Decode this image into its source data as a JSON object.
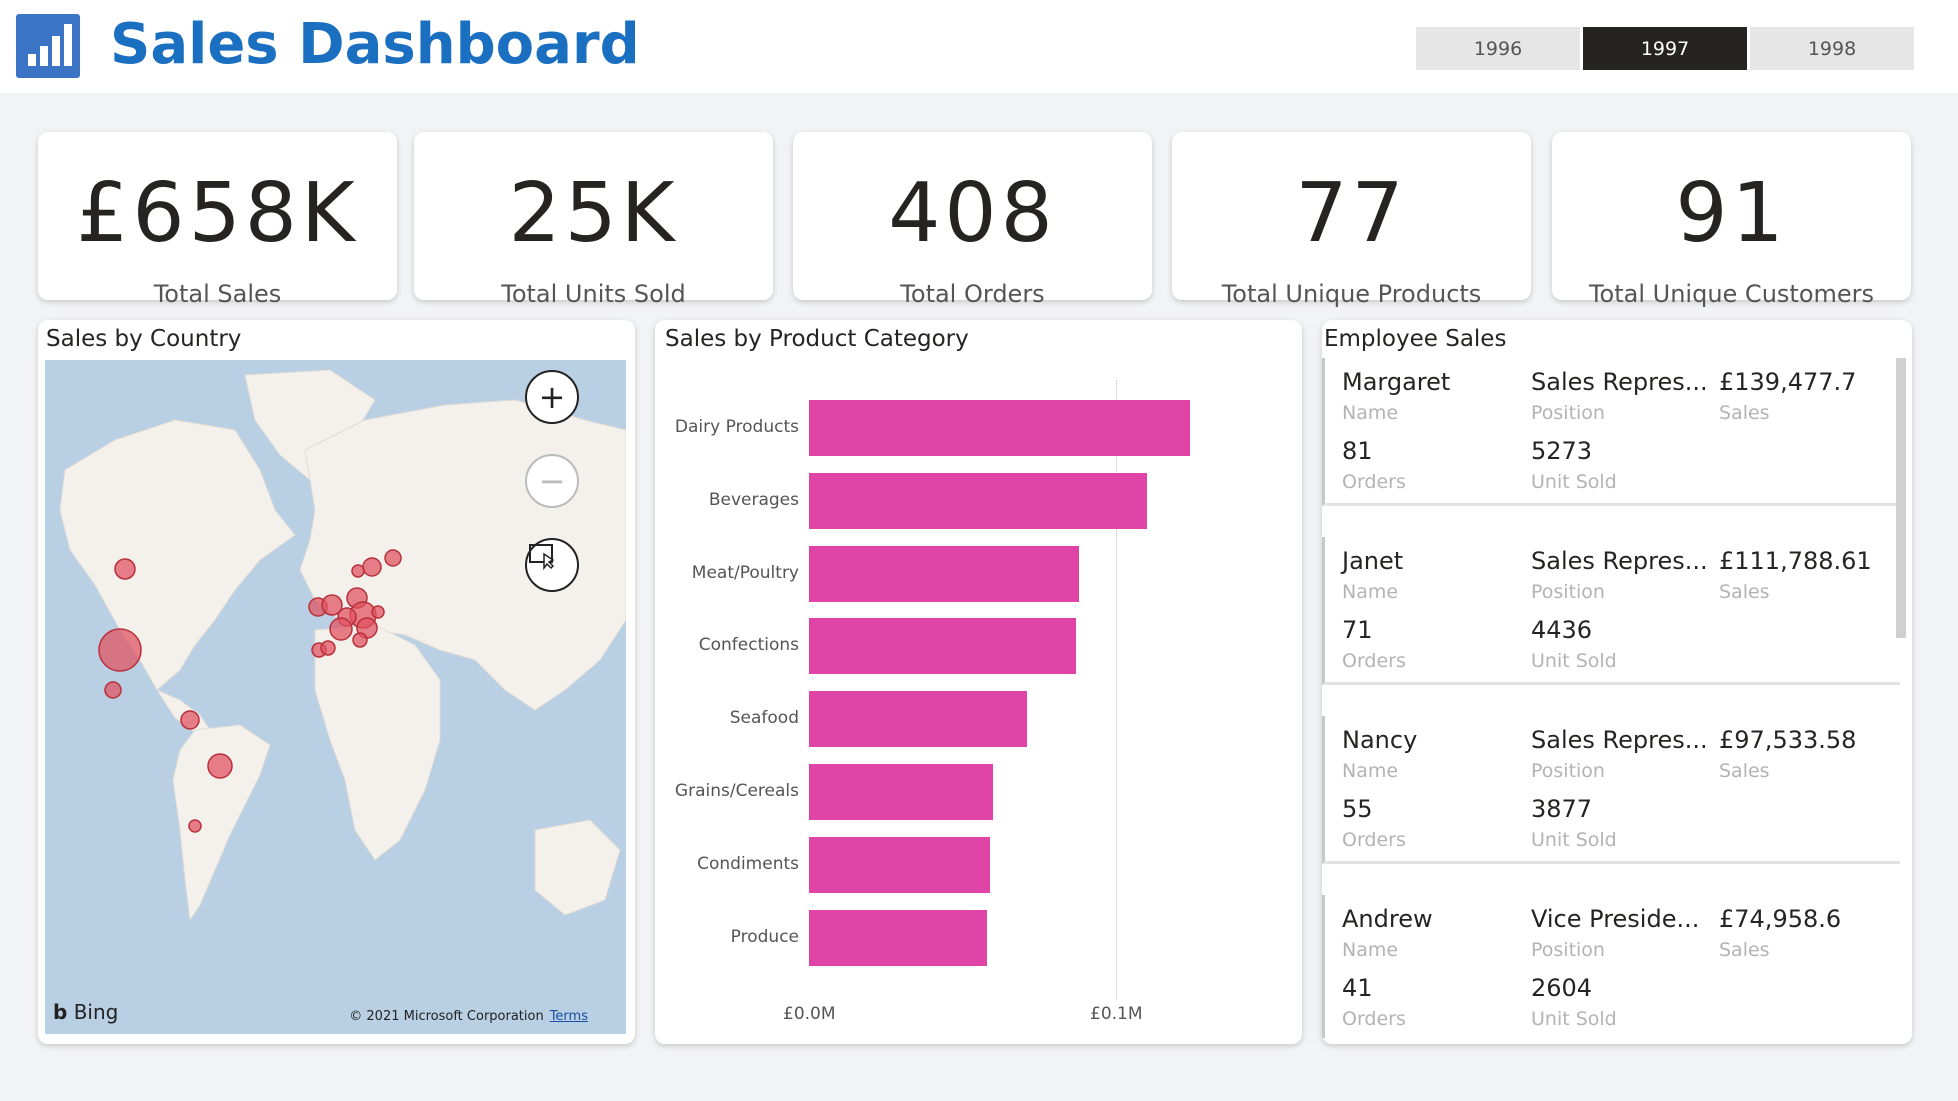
{
  "header": {
    "title": "Sales Dashboard",
    "logo_icon": "bar-chart-icon",
    "years": [
      {
        "label": "1996",
        "selected": false
      },
      {
        "label": "1997",
        "selected": true
      },
      {
        "label": "1998",
        "selected": false
      }
    ]
  },
  "kpis": [
    {
      "value": "£658K",
      "label": "Total Sales"
    },
    {
      "value": "25K",
      "label": "Total Units Sold"
    },
    {
      "value": "408",
      "label": "Total Orders"
    },
    {
      "value": "77",
      "label": "Total Unique Products"
    },
    {
      "value": "91",
      "label": "Total Unique Customers"
    }
  ],
  "map": {
    "title": "Sales by Country",
    "zoom_in_icon": "plus-icon",
    "zoom_out_icon": "minus-icon",
    "select_icon": "lasso-select-icon",
    "bing_label": "Bing",
    "copyright": "© 2021 Microsoft Corporation",
    "terms": "Terms",
    "colors": {
      "water": "#b9cfe4",
      "land": "#f4f1ec",
      "bubble": "#e0505e"
    }
  },
  "chart_data": {
    "type": "bar",
    "title": "Sales by Product Category",
    "orientation": "horizontal",
    "categories": [
      "Dairy Products",
      "Beverages",
      "Meat/Poultry",
      "Confections",
      "Seafood",
      "Grains/Cereals",
      "Condiments",
      "Produce"
    ],
    "values": [
      0.124,
      0.11,
      0.088,
      0.087,
      0.071,
      0.06,
      0.059,
      0.058
    ],
    "x_ticks": [
      {
        "value": 0.0,
        "label": "£0.0M"
      },
      {
        "value": 0.1,
        "label": "£0.1M"
      }
    ],
    "xlim": [
      0,
      0.16
    ],
    "unit": "£M",
    "color": "#e044a7",
    "grid": true
  },
  "employees": {
    "title": "Employee Sales",
    "labels": {
      "name": "Name",
      "position": "Position",
      "sales": "Sales",
      "orders": "Orders",
      "units": "Unit Sold"
    },
    "items": [
      {
        "name": "Margaret",
        "position": "Sales Repres...",
        "sales": "£139,477.7",
        "orders": "81",
        "units": "5273"
      },
      {
        "name": "Janet",
        "position": "Sales Repres...",
        "sales": "£111,788.61",
        "orders": "71",
        "units": "4436"
      },
      {
        "name": "Nancy",
        "position": "Sales Repres...",
        "sales": "£97,533.58",
        "orders": "55",
        "units": "3877"
      },
      {
        "name": "Andrew",
        "position": "Vice Preside...",
        "sales": "£74,958.6",
        "orders": "41",
        "units": "2604"
      }
    ]
  }
}
